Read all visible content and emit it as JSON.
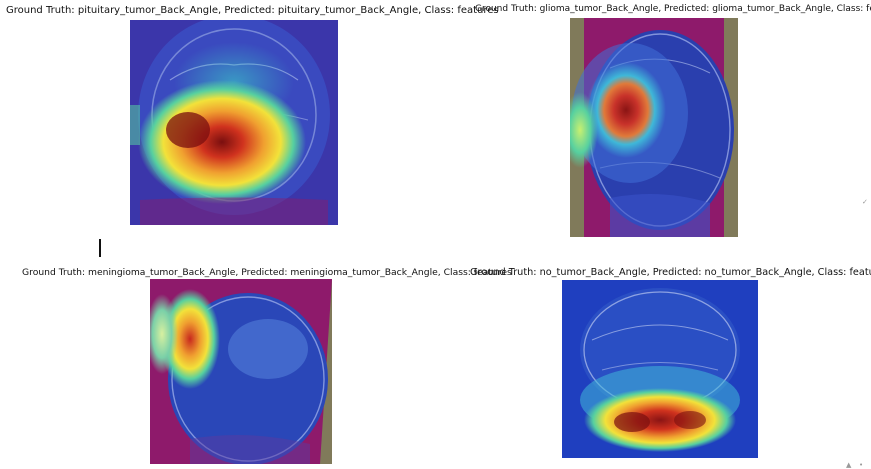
{
  "panels": [
    {
      "title": "Ground Truth: pituitary_tumor_Back_Angle, Predicted: pituitary_tumor_Back_Angle, Class: features",
      "image_description_icon": "mri-gradcam-heatmap"
    },
    {
      "title": "Ground Truth: glioma_tumor_Back_Angle, Predicted: glioma_tumor_Back_Angle, Class: features",
      "image_description_icon": "mri-gradcam-heatmap"
    },
    {
      "title": "Ground Truth: meningioma_tumor_Back_Angle, Predicted: meningioma_tumor_Back_Angle, Class: features",
      "image_description_icon": "mri-gradcam-heatmap"
    },
    {
      "title": "Ground Truth: no_tumor_Back_Angle, Predicted: no_tumor_Back_Angle, Class: features",
      "image_description_icon": "mri-gradcam-heatmap"
    }
  ],
  "colors": {
    "background": "#ffffff",
    "heat_low": "#1f3fbf",
    "heat_mid": "#39c6c6",
    "heat_high_yellow": "#f2e23a",
    "heat_high_red": "#d0321e",
    "frame_magenta": "#8e1a6b",
    "frame_olive": "#807a5a"
  }
}
